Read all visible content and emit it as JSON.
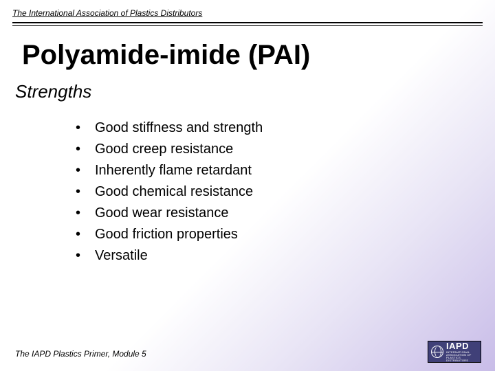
{
  "header": {
    "organization": "The International Association of Plastics Distributors"
  },
  "title": "Polyamide-imide (PAI)",
  "subtitle": "Strengths",
  "bullets": [
    "Good stiffness and strength",
    "Good creep resistance",
    "Inherently flame retardant",
    "Good chemical resistance",
    "Good wear resistance",
    "Good friction properties",
    "Versatile"
  ],
  "footer": {
    "text": "The IAPD Plastics Primer, Module 5",
    "logo_main": "IAPD",
    "logo_sub": "INTERNATIONAL ASSOCIATION OF PLASTICS DISTRIBUTORS"
  },
  "colors": {
    "bg_gradient_start": "#ffffff",
    "bg_gradient_end": "#c8bce8",
    "text": "#000000",
    "logo_bg": "#404078",
    "logo_fg": "#ffffff"
  }
}
